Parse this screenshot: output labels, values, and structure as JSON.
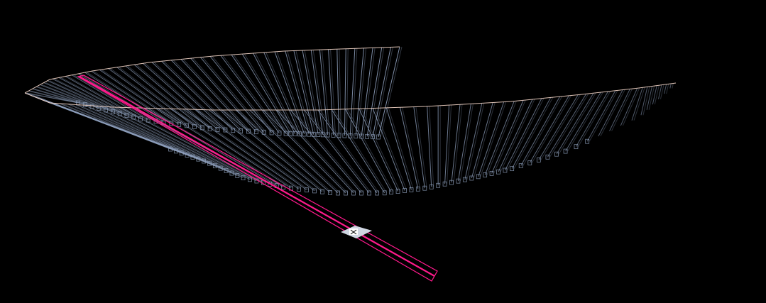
{
  "scene": {
    "background_color": "#000000",
    "spiral_strut_color": "#8fa0bd",
    "spiral_edge_color": "#f4d6c8",
    "beam_color": "#ff1a8c",
    "marker_color": "#cfd6e2",
    "marker_accent_color": "#ffffff"
  },
  "icons": {
    "helix-ramp": "helix-ramp-icon",
    "beam": "pink-beam-icon",
    "marker": "target-marker-icon"
  }
}
